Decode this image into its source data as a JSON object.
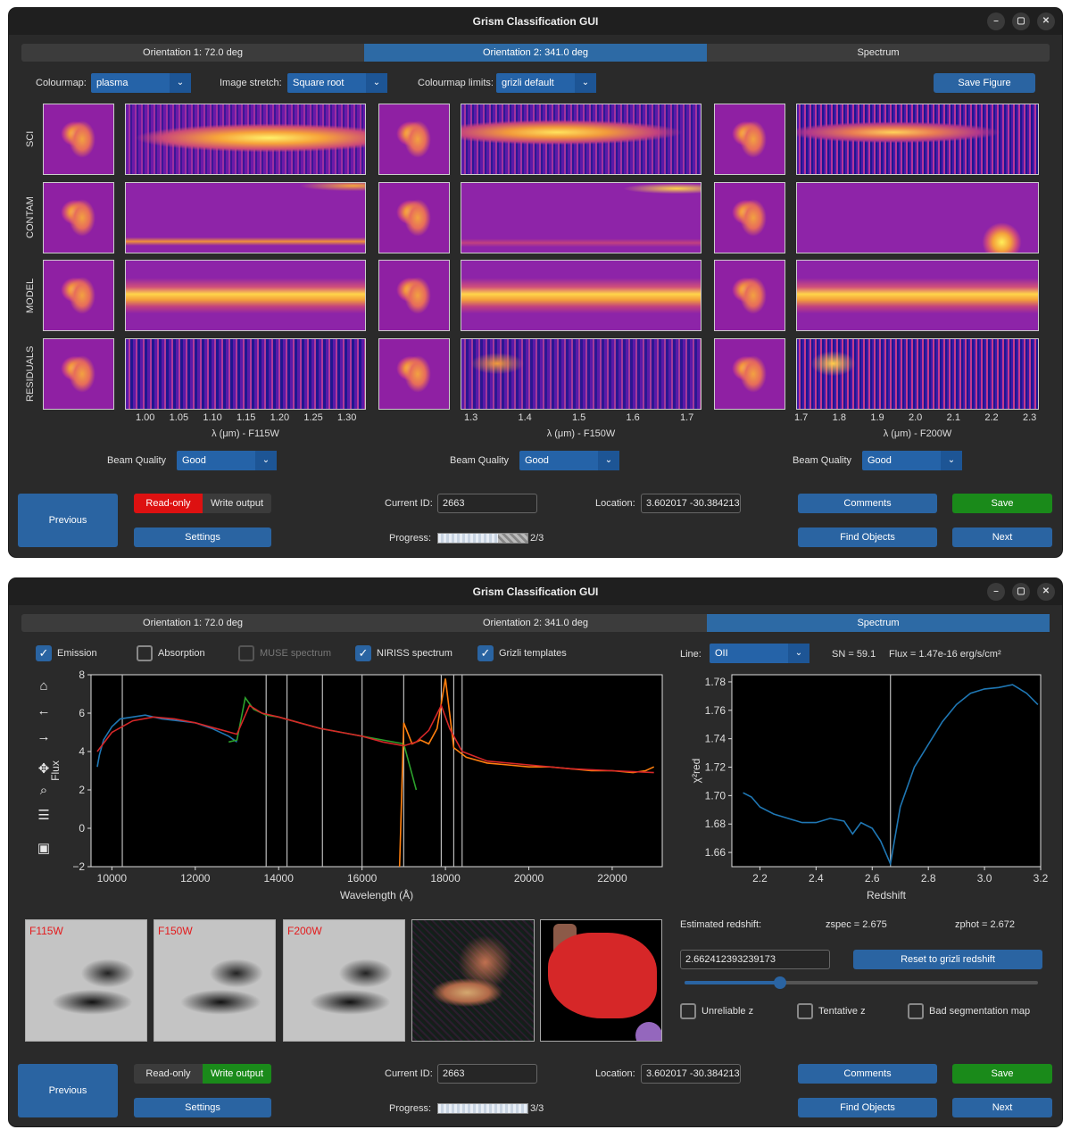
{
  "app_title": "Grism Classification GUI",
  "window_controls": {
    "minimize": "–",
    "maximize": "▢",
    "close": "✕"
  },
  "win1": {
    "tabs": [
      "Orientation 1: 72.0 deg",
      "Orientation 2: 341.0 deg",
      "Spectrum"
    ],
    "active_tab": 1,
    "colourmap_label": "Colourmap:",
    "colourmap_value": "plasma",
    "stretch_label": "Image stretch:",
    "stretch_value": "Square root",
    "limits_label": "Colourmap limits:",
    "limits_value": "grizli default",
    "save_figure": "Save Figure",
    "row_labels": [
      "SCI",
      "CONTAM",
      "MODEL",
      "RESIDUALS"
    ],
    "panels": [
      {
        "ticks": [
          "1.00",
          "1.05",
          "1.10",
          "1.15",
          "1.20",
          "1.25",
          "1.30"
        ],
        "xlabel": "λ (μm) - F115W"
      },
      {
        "ticks": [
          "1.3",
          "1.4",
          "1.5",
          "1.6",
          "1.7"
        ],
        "xlabel": "λ (μm) - F150W"
      },
      {
        "ticks": [
          "1.7",
          "1.8",
          "1.9",
          "2.0",
          "2.1",
          "2.2",
          "2.3"
        ],
        "xlabel": "λ (μm) - F200W"
      }
    ],
    "beam_quality_label": "Beam Quality",
    "beam_quality_value": "Good",
    "footer": {
      "previous": "Previous",
      "readonly": "Read-only",
      "write": "Write output",
      "settings": "Settings",
      "current_id_label": "Current ID:",
      "current_id": "2663",
      "location_label": "Location:",
      "location": "3.602017 -30.384213",
      "progress_label": "Progress:",
      "progress_text": "2/3",
      "progress_fraction": 0.667,
      "comments": "Comments",
      "save": "Save",
      "find_objects": "Find Objects",
      "next": "Next"
    }
  },
  "win2": {
    "tabs": [
      "Orientation 1: 72.0 deg",
      "Orientation 2: 341.0 deg",
      "Spectrum"
    ],
    "active_tab": 2,
    "checks": [
      {
        "label": "Emission",
        "checked": true
      },
      {
        "label": "Absorption",
        "checked": false
      },
      {
        "label": "MUSE spectrum",
        "checked": false,
        "disabled": true
      },
      {
        "label": "NIRISS spectrum",
        "checked": true
      },
      {
        "label": "Grizli templates",
        "checked": true
      }
    ],
    "line_label": "Line:",
    "line_value": "OII",
    "sn_text": "SN = 59.1",
    "flux_text": "Flux = 1.47e-16 erg/s/cm²",
    "toolbar_icons": [
      "home-icon",
      "back-arrow-icon",
      "forward-arrow-icon",
      "pan-icon",
      "zoom-icon",
      "configure-icon",
      "save-icon"
    ],
    "filter_labels": [
      "F115W",
      "F150W",
      "F200W"
    ],
    "est_label": "Estimated redshift:",
    "zspec_text": "zspec = 2.675",
    "zphot_text": "zphot = 2.672",
    "z_input": "2.662412393239173",
    "reset_btn": "Reset to grizli redshift",
    "slider_fraction": 0.27,
    "bottom_checks": [
      {
        "label": "Unreliable z"
      },
      {
        "label": "Tentative z"
      },
      {
        "label": "Bad segmentation map"
      }
    ],
    "footer": {
      "previous": "Previous",
      "readonly": "Read-only",
      "write": "Write output",
      "settings": "Settings",
      "current_id_label": "Current ID:",
      "current_id": "2663",
      "location_label": "Location:",
      "location": "3.602017 -30.384213",
      "progress_label": "Progress:",
      "progress_text": "3/3",
      "progress_fraction": 1.0,
      "comments": "Comments",
      "save": "Save",
      "find_objects": "Find Objects",
      "next": "Next"
    }
  },
  "chart_data": [
    {
      "type": "line",
      "xlabel": "Wavelength (Å)",
      "ylabel": "Flux",
      "xlim": [
        9500,
        23200
      ],
      "ylim": [
        -2,
        8
      ],
      "xticks": [
        10000,
        12000,
        14000,
        16000,
        18000,
        20000,
        22000
      ],
      "yticks": [
        -2,
        0,
        2,
        4,
        6,
        8
      ],
      "vlines": [
        10250,
        13700,
        14200,
        15050,
        16000,
        17000,
        17900,
        18200,
        18400
      ],
      "series": [
        {
          "color": "#1f77b4",
          "x": [
            9650,
            9700,
            9800,
            10000,
            10200,
            10500,
            10800,
            11200,
            11600,
            12000,
            12400,
            12800,
            13000
          ],
          "values": [
            3.2,
            3.8,
            4.6,
            5.3,
            5.7,
            5.8,
            5.9,
            5.7,
            5.6,
            5.5,
            5.2,
            4.8,
            4.5
          ]
        },
        {
          "color": "#2ca02c",
          "x": [
            12800,
            13000,
            13200,
            13400,
            13700,
            14000,
            14500,
            15000,
            15500,
            16000,
            16500,
            17000,
            17300
          ],
          "values": [
            4.5,
            4.6,
            6.8,
            6.2,
            5.9,
            5.8,
            5.5,
            5.2,
            5.0,
            4.8,
            4.6,
            4.4,
            2.0
          ]
        },
        {
          "color": "#ff7f0e",
          "x": [
            16900,
            17000,
            17200,
            17400,
            17600,
            17800,
            18000,
            18200,
            18500,
            19000,
            19500,
            20000,
            20500,
            21000,
            21500,
            22000,
            22500,
            22800,
            23000
          ],
          "values": [
            -2,
            5.5,
            4.4,
            4.6,
            4.4,
            5.2,
            7.8,
            4.2,
            3.7,
            3.4,
            3.3,
            3.2,
            3.2,
            3.1,
            3.0,
            3.0,
            2.9,
            3.0,
            3.2
          ]
        },
        {
          "color": "#d62728",
          "x": [
            9650,
            10000,
            10500,
            11000,
            11500,
            12000,
            12500,
            13000,
            13300,
            13600,
            14000,
            14500,
            15000,
            15500,
            16000,
            16500,
            17000,
            17300,
            17600,
            17900,
            18100,
            18400,
            19000,
            20000,
            21000,
            22000,
            23000
          ],
          "values": [
            4.0,
            5.0,
            5.6,
            5.8,
            5.7,
            5.5,
            5.2,
            4.9,
            6.4,
            6.0,
            5.8,
            5.5,
            5.2,
            5.0,
            4.8,
            4.5,
            4.3,
            4.5,
            5.1,
            6.4,
            5.2,
            4.0,
            3.5,
            3.3,
            3.1,
            3.0,
            2.9
          ]
        }
      ]
    },
    {
      "type": "line",
      "xlabel": "Redshift",
      "ylabel": "χ²red",
      "xlim": [
        2.1,
        3.2
      ],
      "ylim": [
        1.65,
        1.785
      ],
      "xticks": [
        2.2,
        2.4,
        2.6,
        2.8,
        3.0,
        3.2
      ],
      "yticks": [
        1.66,
        1.68,
        1.7,
        1.72,
        1.74,
        1.76,
        1.78
      ],
      "vline": 2.665,
      "series": [
        {
          "color": "#1f77b4",
          "x": [
            2.14,
            2.17,
            2.2,
            2.25,
            2.3,
            2.35,
            2.4,
            2.45,
            2.5,
            2.53,
            2.56,
            2.6,
            2.63,
            2.665,
            2.7,
            2.75,
            2.8,
            2.85,
            2.9,
            2.95,
            3.0,
            3.05,
            3.1,
            3.15,
            3.19
          ],
          "values": [
            1.702,
            1.699,
            1.692,
            1.687,
            1.684,
            1.681,
            1.681,
            1.684,
            1.682,
            1.673,
            1.681,
            1.677,
            1.668,
            1.652,
            1.692,
            1.72,
            1.736,
            1.752,
            1.764,
            1.772,
            1.775,
            1.776,
            1.778,
            1.772,
            1.764
          ]
        }
      ]
    }
  ]
}
